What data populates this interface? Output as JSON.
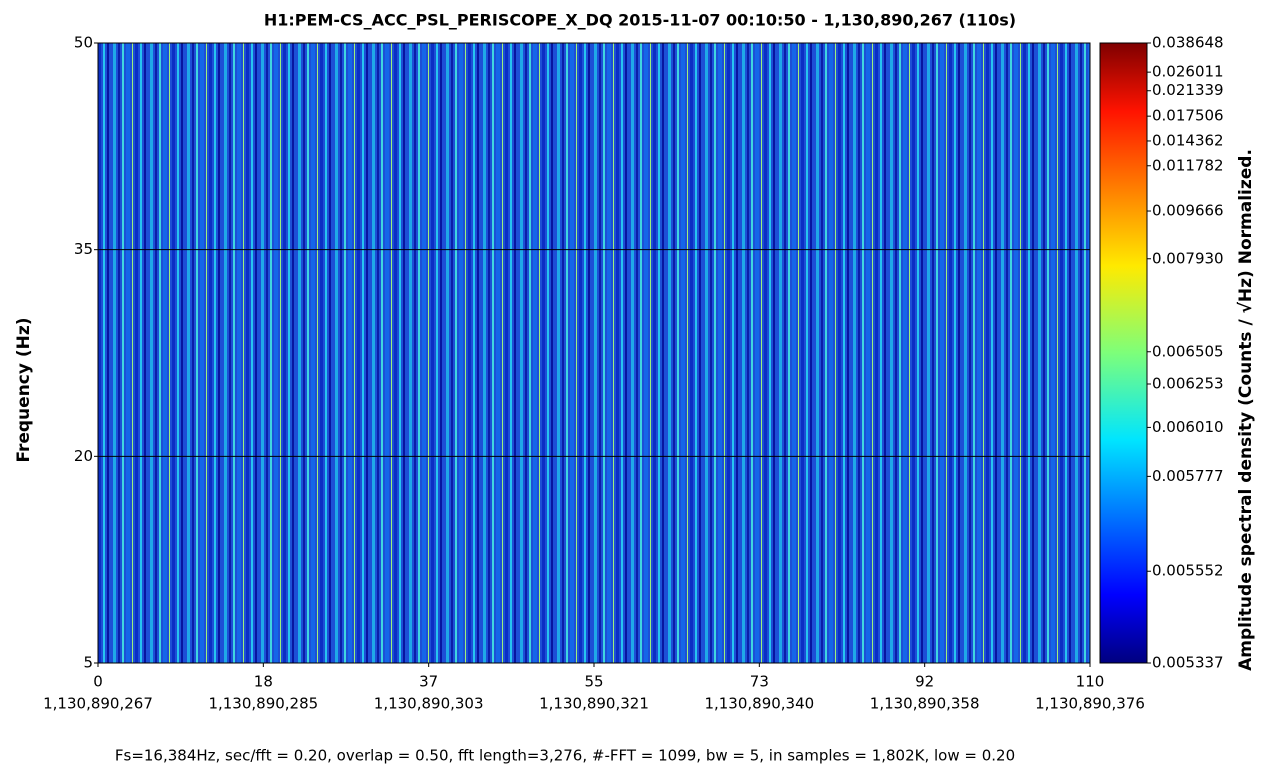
{
  "chart_data": {
    "type": "spectrogram",
    "title": "H1:PEM-CS_ACC_PSL_PERISCOPE_X_DQ 2015-11-07 00:10:50 - 1,130,890,267 (110s)",
    "ylabel": "Frequency (Hz)",
    "colorbar_label": "Amplitude spectral density (Counts / √Hz) Normalized.",
    "footer": "Fs=16,384Hz, sec/fft = 0.20, overlap = 0.50, fft length=3,276, #-FFT = 1099, bw = 5, in samples = 1,802K, low = 0.20",
    "xlim": [
      0,
      110
    ],
    "xticks": [
      {
        "value": 0,
        "label": "0",
        "sublabel": "1,130,890,267"
      },
      {
        "value": 18.333,
        "label": "18",
        "sublabel": "1,130,890,285"
      },
      {
        "value": 36.667,
        "label": "37",
        "sublabel": "1,130,890,303"
      },
      {
        "value": 55,
        "label": "55",
        "sublabel": "1,130,890,321"
      },
      {
        "value": 73.333,
        "label": "73",
        "sublabel": "1,130,890,340"
      },
      {
        "value": 91.667,
        "label": "92",
        "sublabel": "1,130,890,358"
      },
      {
        "value": 110,
        "label": "110",
        "sublabel": "1,130,890,376"
      }
    ],
    "ylim": [
      5,
      50
    ],
    "yticks": [
      5,
      20,
      35,
      50
    ],
    "grid": true,
    "colormap": "jet",
    "clim": [
      0.005337,
      0.038648
    ],
    "cticks": [
      {
        "value": 0.038648,
        "label": "0.038648",
        "level": 1
      },
      {
        "value": 0.026011,
        "label": "0.026011",
        "level": 0.953
      },
      {
        "value": 0.021339,
        "label": "0.021339",
        "level": 0.923
      },
      {
        "value": 0.017506,
        "label": "0.017506",
        "level": 0.882
      },
      {
        "value": 0.014362,
        "label": "0.014362",
        "level": 0.842
      },
      {
        "value": 0.011782,
        "label": "0.011782",
        "level": 0.802
      },
      {
        "value": 0.009666,
        "label": "0.009666",
        "level": 0.729
      },
      {
        "value": 0.00793,
        "label": "0.007930",
        "level": 0.652
      },
      {
        "value": 0.006505,
        "label": "0.006505",
        "level": 0.502
      },
      {
        "value": 0.006253,
        "label": "0.006253",
        "level": 0.45
      },
      {
        "value": 0.00601,
        "label": "0.006010",
        "level": 0.38
      },
      {
        "value": 0.005777,
        "label": "0.005777",
        "level": 0.301
      },
      {
        "value": 0.005552,
        "label": "0.005552",
        "level": 0.148
      },
      {
        "value": 0.005337,
        "label": "0.005337",
        "level": 0
      }
    ]
  }
}
